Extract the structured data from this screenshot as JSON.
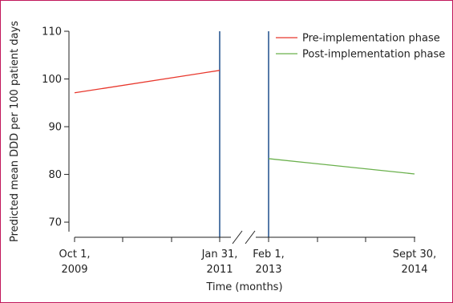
{
  "chart_data": {
    "type": "line",
    "xlabel": "Time (months)",
    "ylabel": "Predicted mean DDD per 100 patient days",
    "ylim": [
      68,
      110
    ],
    "yticks": [
      70,
      80,
      90,
      100,
      110
    ],
    "x_date_labels": [
      {
        "line1": "Oct 1,",
        "line2": "2009"
      },
      {
        "line1": "Jan 31,",
        "line2": "2011"
      },
      {
        "line1": "Feb 1,",
        "line2": "2013"
      },
      {
        "line1": "Sept 30,",
        "line2": "2014"
      }
    ],
    "axis_break": "between Jan 31, 2011 and Feb 1, 2013",
    "vertical_markers": [
      "Jan 31, 2011",
      "Feb 1, 2013"
    ],
    "series": [
      {
        "name": "Pre-implementation phase",
        "color": "#e8372c",
        "x": [
          "2009-10-01",
          "2011-01-31"
        ],
        "y": [
          97.1,
          101.8
        ]
      },
      {
        "name": "Post-implementation phase",
        "color": "#6ab04c",
        "x": [
          "2013-02-01",
          "2014-09-30"
        ],
        "y": [
          83.3,
          80.1
        ]
      }
    ],
    "legend_position": "top-right",
    "marker_color": "#1f4e8c"
  }
}
